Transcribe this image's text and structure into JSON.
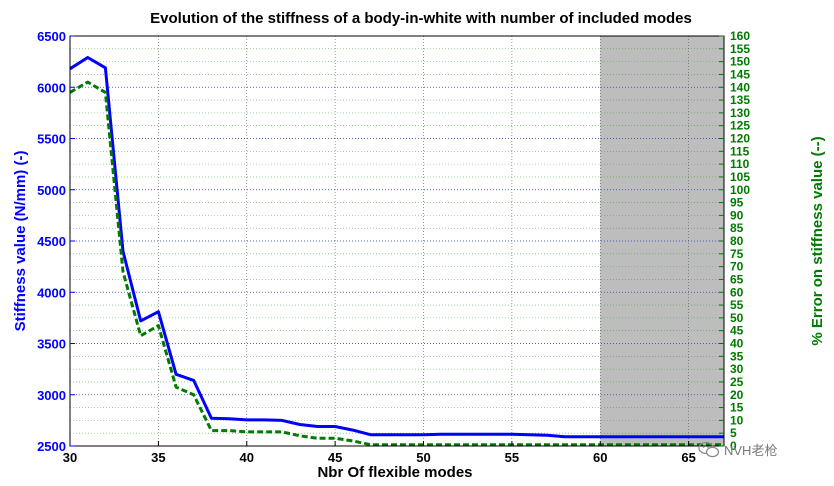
{
  "chart_data": {
    "type": "line",
    "title": "Evolution of the stiffness of a body-in-white with number of included modes",
    "xlabel": "Nbr Of flexible modes",
    "ylabel_left": "Stiffness value (N/mm) (-)",
    "ylabel_right": "% Error on stiffness value (--)",
    "xlim": [
      30,
      67
    ],
    "ylim_left": [
      2500,
      6500
    ],
    "ylim_right": [
      0,
      160
    ],
    "x_ticks": [
      "30",
      "35",
      "40",
      "45",
      "50",
      "55",
      "60",
      "65"
    ],
    "y_left_ticks": [
      "2500",
      "3000",
      "3500",
      "4000",
      "4500",
      "5000",
      "5500",
      "6000",
      "6500"
    ],
    "y_right_ticks": [
      "0",
      "5",
      "10",
      "15",
      "20",
      "25",
      "30",
      "35",
      "40",
      "45",
      "50",
      "55",
      "60",
      "65",
      "70",
      "75",
      "80",
      "85",
      "90",
      "95",
      "100",
      "105",
      "110",
      "115",
      "120",
      "125",
      "130",
      "135",
      "140",
      "145",
      "150",
      "155",
      "160"
    ],
    "shaded_region": [
      60,
      67
    ],
    "grid": true,
    "series": [
      {
        "axis": "left",
        "color": "#0000ff",
        "style": "solid",
        "x": [
          30,
          31,
          32,
          33,
          34,
          35,
          36,
          37,
          38,
          39,
          40,
          41,
          42,
          43,
          44,
          45,
          46,
          47,
          48,
          49,
          50,
          51,
          52,
          53,
          54,
          55,
          56,
          57,
          58,
          59,
          60,
          61,
          62,
          63,
          64,
          65,
          66,
          67
        ],
        "values": [
          6180,
          6290,
          6190,
          4400,
          3720,
          3810,
          3200,
          3140,
          2770,
          2765,
          2755,
          2755,
          2750,
          2710,
          2690,
          2690,
          2655,
          2610,
          2610,
          2610,
          2610,
          2615,
          2615,
          2615,
          2615,
          2615,
          2610,
          2605,
          2590,
          2590,
          2590,
          2590,
          2590,
          2590,
          2590,
          2590,
          2590,
          2590
        ]
      },
      {
        "axis": "right",
        "color": "#007a00",
        "style": "dashed",
        "x": [
          30,
          31,
          32,
          33,
          34,
          35,
          36,
          37,
          38,
          39,
          40,
          41,
          42,
          43,
          44,
          45,
          46,
          47,
          48,
          49,
          50,
          51,
          52,
          53,
          54,
          55,
          56,
          57,
          58,
          59,
          60,
          61,
          62,
          63,
          64,
          65,
          66,
          67
        ],
        "values": [
          138,
          142,
          138,
          68,
          43,
          47,
          23,
          20,
          6,
          6,
          5.5,
          5.5,
          5.5,
          4,
          3,
          3,
          2,
          0.5,
          0.5,
          0.5,
          0.5,
          0.5,
          0.5,
          0.5,
          0.5,
          0.5,
          0.5,
          0.5,
          0.5,
          0.5,
          0.5,
          0.5,
          0.5,
          0.5,
          0.5,
          0.5,
          0.5,
          0.5
        ]
      }
    ]
  },
  "watermark": {
    "text": "NVH老枪",
    "icon": "wechat-icon"
  }
}
